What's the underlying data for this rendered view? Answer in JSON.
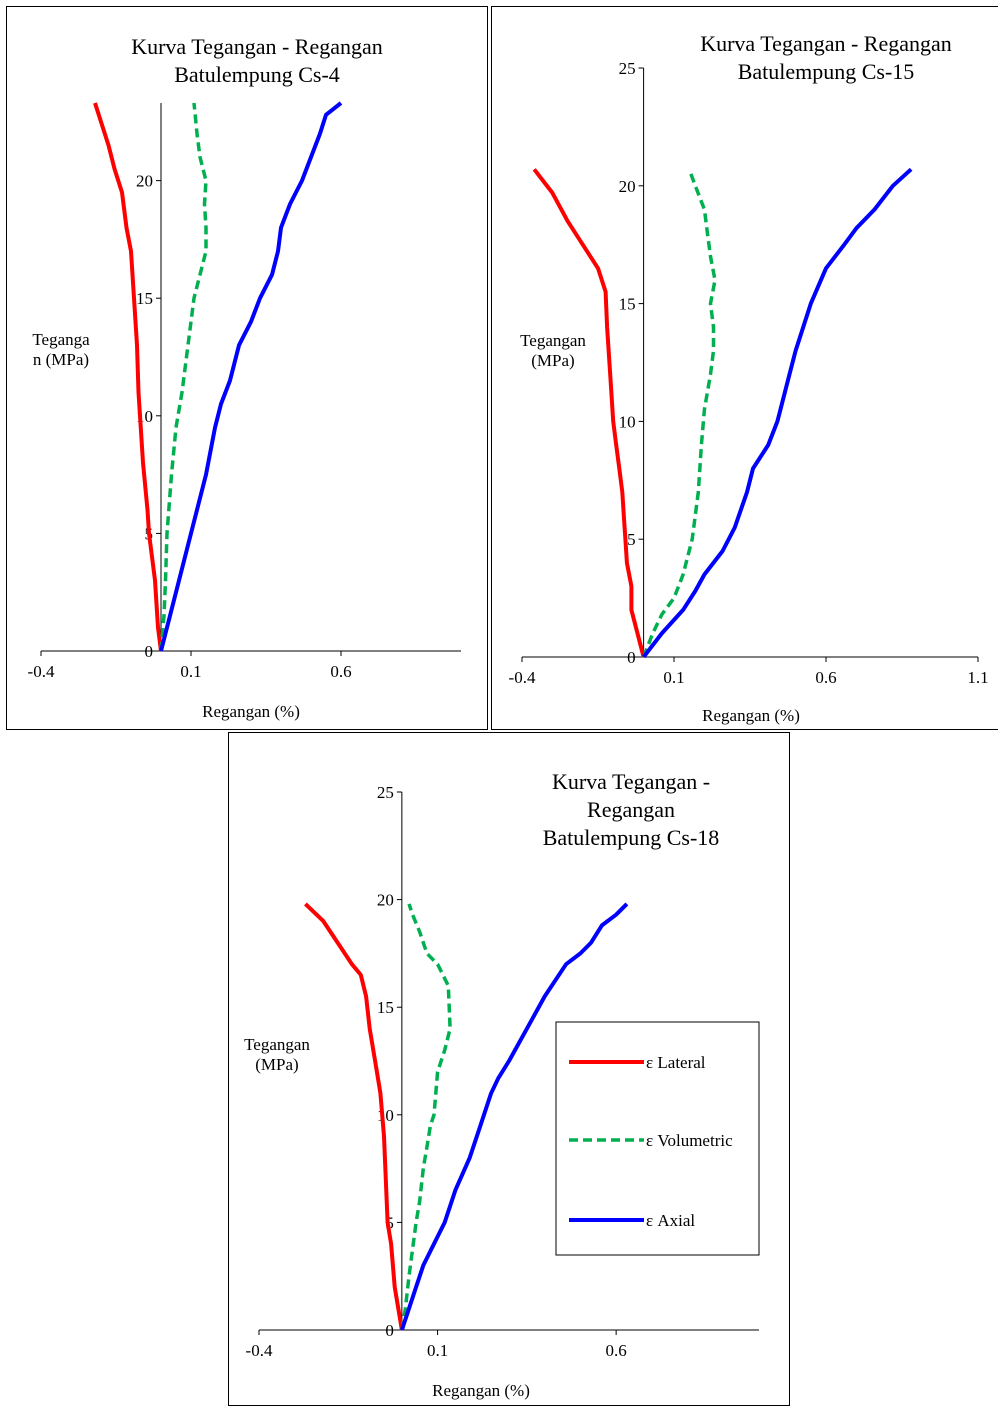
{
  "colors": {
    "lateral": "#ff0000",
    "volumetric": "#00b050",
    "axial": "#0000ff",
    "axis": "#000000"
  },
  "chart_data": [
    {
      "type": "line",
      "title": [
        "Kurva Tegangan - Regangan",
        "Batulempung Cs-4"
      ],
      "xlabel": "Regangan (%)",
      "ylabel": [
        "Teganga",
        "n (MPa)"
      ],
      "xlim": [
        -0.4,
        1.0
      ],
      "ylim": [
        0,
        23.3
      ],
      "xticks": [
        -0.4,
        0.1,
        0.6
      ],
      "xtick_labels": [
        "-0.4",
        "0.1",
        "0.6"
      ],
      "yticks": [
        0,
        5,
        10,
        15,
        20
      ],
      "ytick_labels": [
        "0",
        "5",
        "10",
        "15",
        "20"
      ],
      "grid": false,
      "series": [
        {
          "key": "lateral",
          "style": "solid",
          "points": [
            [
              0,
              0
            ],
            [
              -0.01,
              1
            ],
            [
              -0.015,
              2
            ],
            [
              -0.02,
              3
            ],
            [
              -0.03,
              4
            ],
            [
              -0.04,
              5
            ],
            [
              -0.045,
              6
            ],
            [
              -0.06,
              8
            ],
            [
              -0.07,
              10
            ],
            [
              -0.075,
              11
            ],
            [
              -0.08,
              13
            ],
            [
              -0.09,
              15
            ],
            [
              -0.1,
              17
            ],
            [
              -0.115,
              18
            ],
            [
              -0.13,
              19.5
            ],
            [
              -0.155,
              20.5
            ],
            [
              -0.175,
              21.5
            ],
            [
              -0.2,
              22.5
            ],
            [
              -0.22,
              23.3
            ]
          ]
        },
        {
          "key": "volumetric",
          "style": "dashed",
          "points": [
            [
              0,
              0
            ],
            [
              0.01,
              1.5
            ],
            [
              0.015,
              3
            ],
            [
              0.02,
              5
            ],
            [
              0.035,
              7.5
            ],
            [
              0.05,
              9.5
            ],
            [
              0.07,
              11
            ],
            [
              0.08,
              12
            ],
            [
              0.1,
              14
            ],
            [
              0.11,
              15
            ],
            [
              0.13,
              16
            ],
            [
              0.15,
              17
            ],
            [
              0.15,
              18
            ],
            [
              0.145,
              19
            ],
            [
              0.15,
              20
            ],
            [
              0.13,
              21
            ],
            [
              0.12,
              22
            ],
            [
              0.11,
              23.3
            ]
          ]
        },
        {
          "key": "axial",
          "style": "solid",
          "points": [
            [
              0,
              0
            ],
            [
              0.05,
              2.5
            ],
            [
              0.1,
              5
            ],
            [
              0.15,
              7.5
            ],
            [
              0.18,
              9.5
            ],
            [
              0.2,
              10.5
            ],
            [
              0.23,
              11.5
            ],
            [
              0.26,
              13
            ],
            [
              0.3,
              14
            ],
            [
              0.33,
              15
            ],
            [
              0.37,
              16
            ],
            [
              0.39,
              17
            ],
            [
              0.4,
              18
            ],
            [
              0.43,
              19
            ],
            [
              0.47,
              20
            ],
            [
              0.5,
              21
            ],
            [
              0.53,
              22
            ],
            [
              0.55,
              22.8
            ],
            [
              0.6,
              23.3
            ]
          ]
        }
      ]
    },
    {
      "type": "line",
      "title": [
        "Kurva Tegangan - Regangan",
        "Batulempung Cs-15"
      ],
      "xlabel": "Regangan (%)",
      "ylabel": [
        "Tegangan",
        "(MPa)"
      ],
      "xlim": [
        -0.4,
        1.1
      ],
      "ylim": [
        0,
        25
      ],
      "xticks": [
        -0.4,
        0.1,
        0.6,
        1.1
      ],
      "xtick_labels": [
        "-0.4",
        "0.1",
        "0.6",
        "1.1"
      ],
      "yticks": [
        0,
        5,
        10,
        15,
        20,
        25
      ],
      "ytick_labels": [
        "0",
        "5",
        "10",
        "15",
        "20",
        "25"
      ],
      "grid": false,
      "series": [
        {
          "key": "lateral",
          "style": "solid",
          "points": [
            [
              0,
              0
            ],
            [
              -0.02,
              1
            ],
            [
              -0.04,
              2
            ],
            [
              -0.04,
              3
            ],
            [
              -0.055,
              4
            ],
            [
              -0.06,
              5
            ],
            [
              -0.065,
              6
            ],
            [
              -0.07,
              7
            ],
            [
              -0.08,
              8
            ],
            [
              -0.09,
              9
            ],
            [
              -0.1,
              10
            ],
            [
              -0.11,
              12
            ],
            [
              -0.12,
              14
            ],
            [
              -0.125,
              15.5
            ],
            [
              -0.15,
              16.5
            ],
            [
              -0.2,
              17.5
            ],
            [
              -0.25,
              18.5
            ],
            [
              -0.3,
              19.7
            ],
            [
              -0.36,
              20.7
            ]
          ]
        },
        {
          "key": "volumetric",
          "style": "dashed",
          "points": [
            [
              0,
              0
            ],
            [
              0.03,
              1
            ],
            [
              0.06,
              1.8
            ],
            [
              0.1,
              2.5
            ],
            [
              0.13,
              3.5
            ],
            [
              0.16,
              5
            ],
            [
              0.18,
              7
            ],
            [
              0.19,
              9
            ],
            [
              0.2,
              10.5
            ],
            [
              0.22,
              12
            ],
            [
              0.23,
              13
            ],
            [
              0.23,
              14
            ],
            [
              0.22,
              15
            ],
            [
              0.235,
              16
            ],
            [
              0.22,
              17
            ],
            [
              0.21,
              18
            ],
            [
              0.2,
              19
            ],
            [
              0.17,
              20
            ],
            [
              0.15,
              20.7
            ]
          ]
        },
        {
          "key": "axial",
          "style": "solid",
          "points": [
            [
              0,
              0
            ],
            [
              0.06,
              1
            ],
            [
              0.13,
              2
            ],
            [
              0.17,
              2.8
            ],
            [
              0.2,
              3.5
            ],
            [
              0.26,
              4.5
            ],
            [
              0.3,
              5.5
            ],
            [
              0.34,
              7
            ],
            [
              0.36,
              8
            ],
            [
              0.41,
              9
            ],
            [
              0.44,
              10
            ],
            [
              0.48,
              12
            ],
            [
              0.5,
              13
            ],
            [
              0.55,
              15
            ],
            [
              0.6,
              16.5
            ],
            [
              0.66,
              17.5
            ],
            [
              0.7,
              18.2
            ],
            [
              0.76,
              19
            ],
            [
              0.82,
              20
            ],
            [
              0.88,
              20.7
            ]
          ]
        }
      ]
    },
    {
      "type": "line",
      "title": [
        "Kurva Tegangan -",
        "Regangan",
        "Batulempung Cs-18"
      ],
      "xlabel": "Regangan (%)",
      "ylabel": [
        "Tegangan",
        "(MPa)"
      ],
      "xlim": [
        -0.4,
        1.0
      ],
      "ylim": [
        0,
        25
      ],
      "xticks": [
        -0.4,
        0.1,
        0.6
      ],
      "xtick_labels": [
        "-0.4",
        "0.1",
        "0.6"
      ],
      "yticks": [
        0,
        5,
        10,
        15,
        20,
        25
      ],
      "ytick_labels": [
        "0",
        "5",
        "10",
        "15",
        "20",
        "25"
      ],
      "grid": false,
      "legend": {
        "position": "right",
        "entries": [
          {
            "key": "lateral",
            "label": "ε Lateral"
          },
          {
            "key": "volumetric",
            "label": "ε Volumetric"
          },
          {
            "key": "axial",
            "label": "ε Axial"
          }
        ]
      },
      "series": [
        {
          "key": "lateral",
          "style": "solid",
          "points": [
            [
              0,
              0
            ],
            [
              -0.01,
              1
            ],
            [
              -0.02,
              2
            ],
            [
              -0.025,
              3
            ],
            [
              -0.03,
              4
            ],
            [
              -0.04,
              5
            ],
            [
              -0.045,
              7
            ],
            [
              -0.05,
              9
            ],
            [
              -0.06,
              11
            ],
            [
              -0.07,
              12
            ],
            [
              -0.08,
              13
            ],
            [
              -0.09,
              14
            ],
            [
              -0.1,
              15.5
            ],
            [
              -0.115,
              16.5
            ],
            [
              -0.14,
              17
            ],
            [
              -0.18,
              18
            ],
            [
              -0.22,
              19
            ],
            [
              -0.27,
              19.8
            ]
          ]
        },
        {
          "key": "volumetric",
          "style": "dashed",
          "points": [
            [
              0,
              0
            ],
            [
              0.01,
              1
            ],
            [
              0.02,
              2.5
            ],
            [
              0.04,
              5
            ],
            [
              0.05,
              6
            ],
            [
              0.06,
              7.5
            ],
            [
              0.07,
              8.5
            ],
            [
              0.08,
              9.5
            ],
            [
              0.09,
              10
            ],
            [
              0.1,
              12
            ],
            [
              0.12,
              13
            ],
            [
              0.135,
              14
            ],
            [
              0.13,
              16
            ],
            [
              0.1,
              17
            ],
            [
              0.07,
              17.5
            ],
            [
              0.05,
              18.5
            ],
            [
              0.03,
              19.3
            ],
            [
              0.02,
              19.8
            ]
          ]
        },
        {
          "key": "axial",
          "style": "solid",
          "points": [
            [
              0,
              0
            ],
            [
              0.02,
              1
            ],
            [
              0.04,
              2
            ],
            [
              0.06,
              3
            ],
            [
              0.09,
              4
            ],
            [
              0.12,
              5
            ],
            [
              0.15,
              6.5
            ],
            [
              0.19,
              8
            ],
            [
              0.22,
              9.5
            ],
            [
              0.25,
              11
            ],
            [
              0.27,
              11.7
            ],
            [
              0.3,
              12.5
            ],
            [
              0.35,
              14
            ],
            [
              0.4,
              15.5
            ],
            [
              0.46,
              17
            ],
            [
              0.5,
              17.5
            ],
            [
              0.53,
              18
            ],
            [
              0.56,
              18.8
            ],
            [
              0.6,
              19.3
            ],
            [
              0.63,
              19.8
            ]
          ]
        }
      ]
    }
  ]
}
